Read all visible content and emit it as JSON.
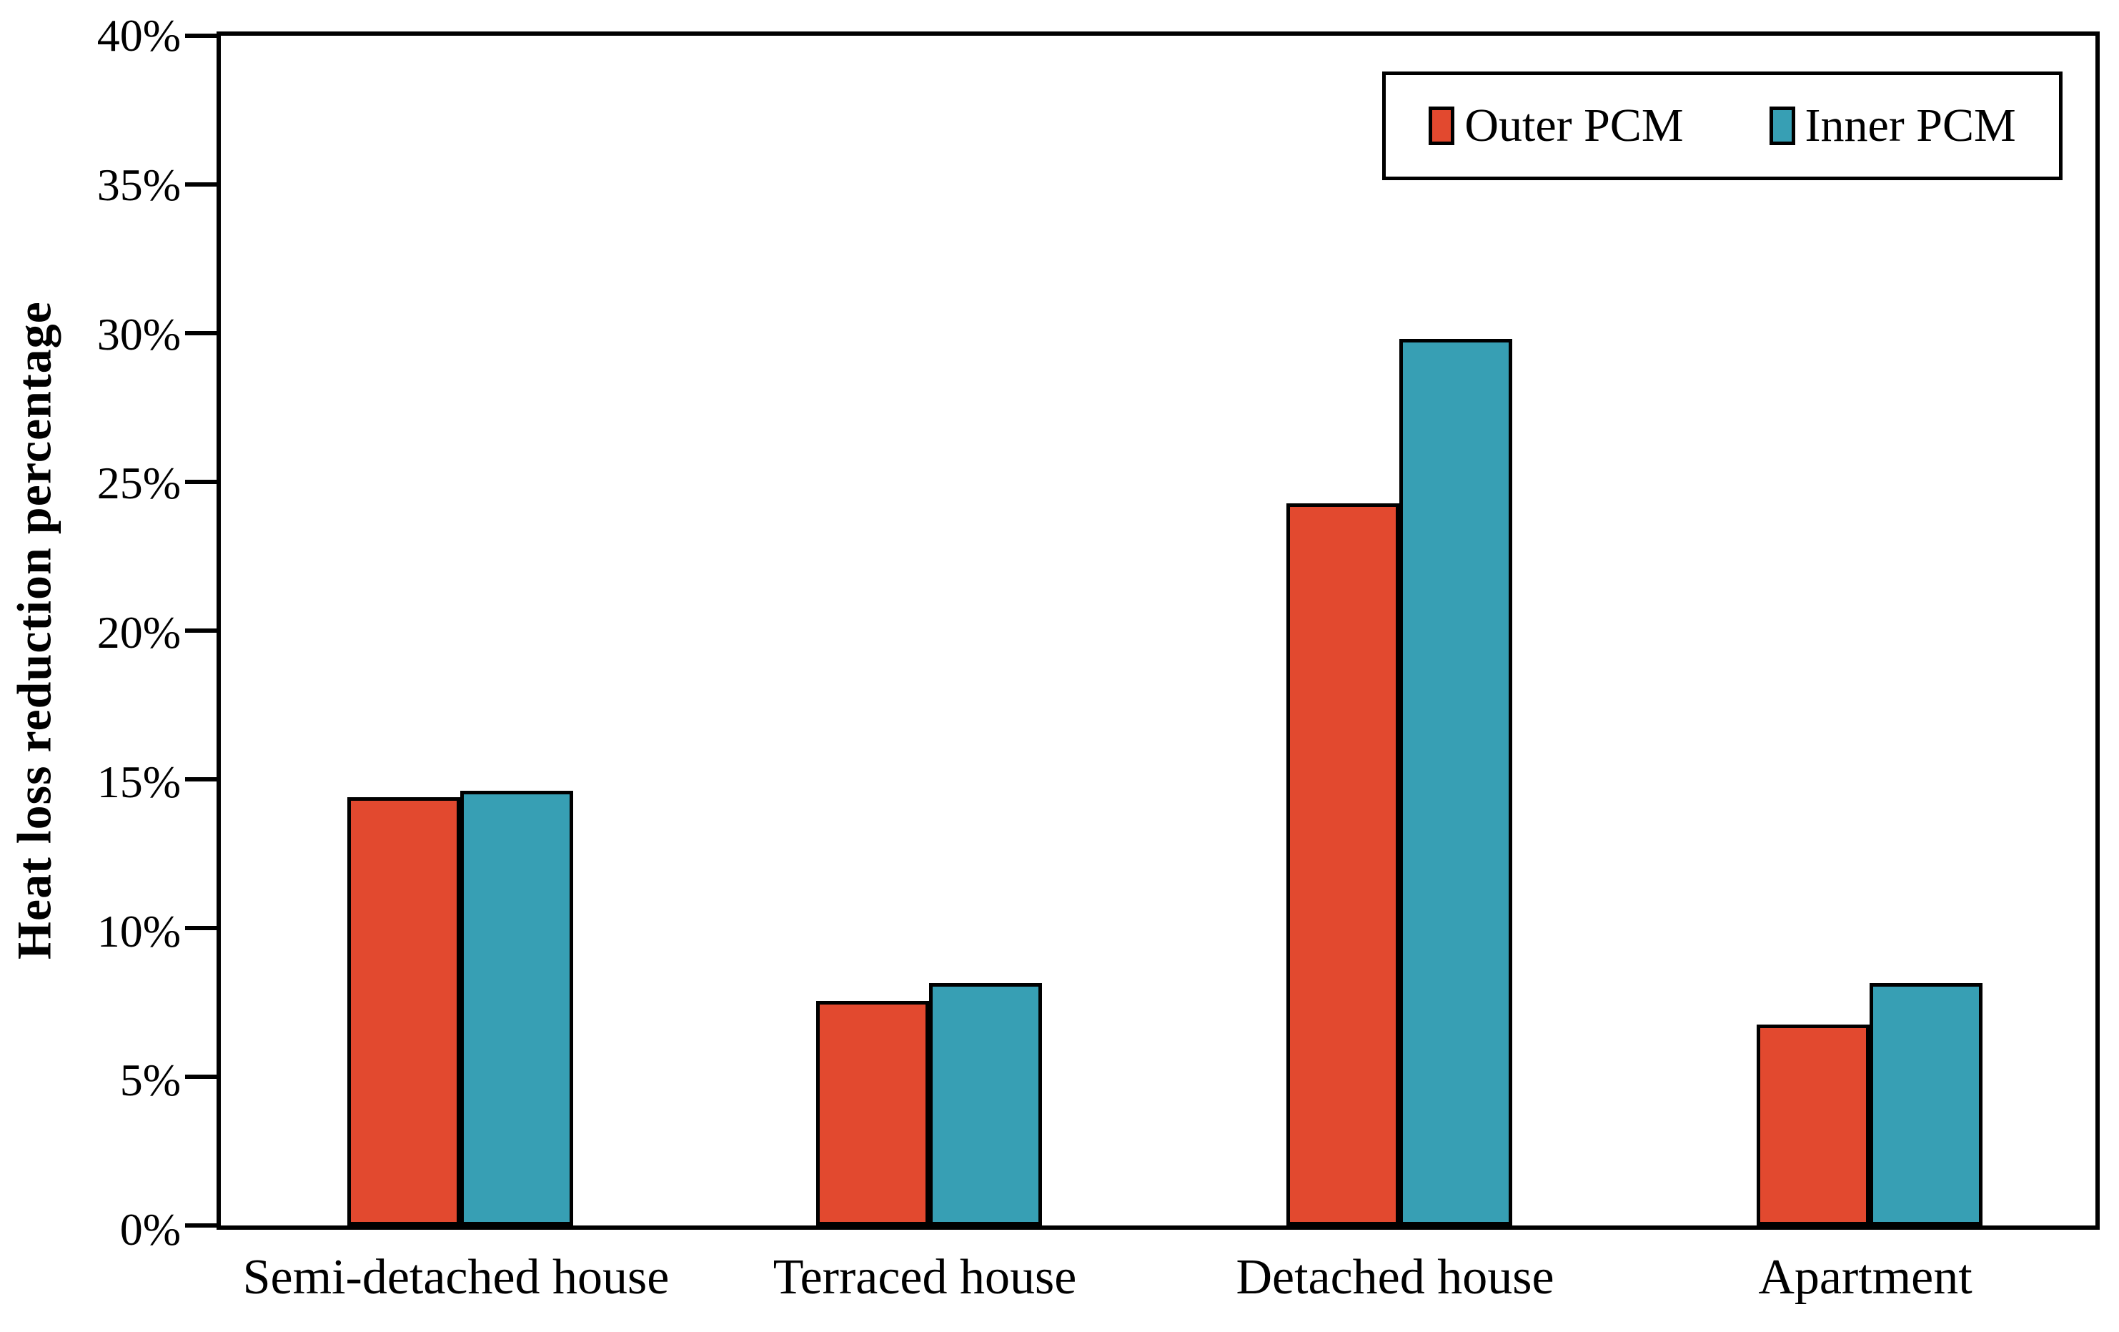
{
  "y_axis": {
    "title": "Heat loss reduction percentage",
    "tick_labels": [
      "0%",
      "5%",
      "10%",
      "15%",
      "20%",
      "25%",
      "30%",
      "35%",
      "40%"
    ],
    "min": 0,
    "max": 40
  },
  "legend": {
    "items": [
      {
        "label": "Outer PCM",
        "color": "#E2492F"
      },
      {
        "label": "Inner PCM",
        "color": "#379FB4"
      }
    ]
  },
  "chart_data": {
    "type": "bar",
    "categories": [
      "Semi-detached house",
      "Terraced house",
      "Detached house",
      "Apartment"
    ],
    "series": [
      {
        "name": "Outer PCM",
        "color": "#E2492F",
        "values": [
          14.3,
          7.5,
          24.1,
          6.7
        ]
      },
      {
        "name": "Inner PCM",
        "color": "#379FB4",
        "values": [
          14.5,
          8.1,
          29.6,
          8.1
        ]
      }
    ],
    "title": "",
    "xlabel": "",
    "ylabel": "Heat loss reduction percentage",
    "ylim": [
      0,
      40
    ],
    "yticks_percent": [
      "0%",
      "5%",
      "10%",
      "15%",
      "20%",
      "25%",
      "30%",
      "35%",
      "40%"
    ],
    "grid": false,
    "bar_edge_color": "#000000",
    "legend_position": "top-right"
  }
}
